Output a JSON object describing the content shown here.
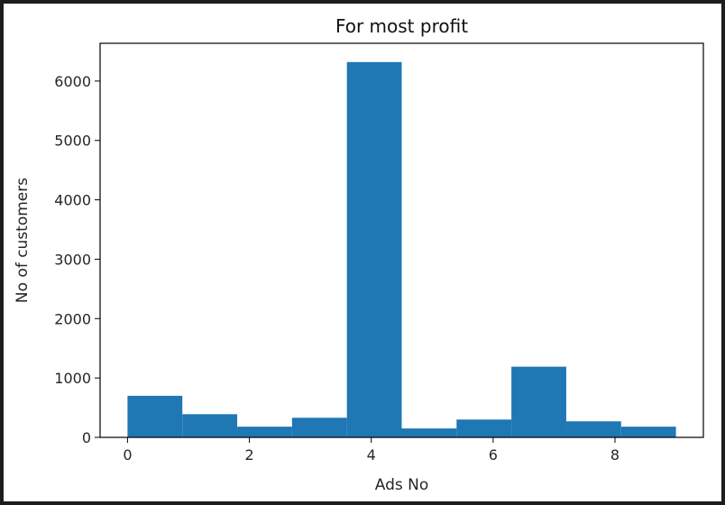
{
  "chart_data": {
    "type": "bar",
    "title": "For most profit",
    "xlabel": "Ads No",
    "ylabel": "No of customers",
    "bins": [
      {
        "start": 0.0,
        "end": 0.9,
        "value": 700
      },
      {
        "start": 0.9,
        "end": 1.8,
        "value": 390
      },
      {
        "start": 1.8,
        "end": 2.7,
        "value": 180
      },
      {
        "start": 2.7,
        "end": 3.6,
        "value": 330
      },
      {
        "start": 3.6,
        "end": 4.5,
        "value": 6320
      },
      {
        "start": 4.5,
        "end": 5.4,
        "value": 150
      },
      {
        "start": 5.4,
        "end": 6.3,
        "value": 300
      },
      {
        "start": 6.3,
        "end": 7.2,
        "value": 1190
      },
      {
        "start": 7.2,
        "end": 8.1,
        "value": 270
      },
      {
        "start": 8.1,
        "end": 9.0,
        "value": 180
      }
    ],
    "xlim": [
      -0.45,
      9.45
    ],
    "ylim": [
      0,
      6636
    ],
    "xticks": [
      0,
      2,
      4,
      6,
      8
    ],
    "yticks": [
      0,
      1000,
      2000,
      3000,
      4000,
      5000,
      6000
    ],
    "bar_color": "#1f77b4",
    "grid": false
  }
}
